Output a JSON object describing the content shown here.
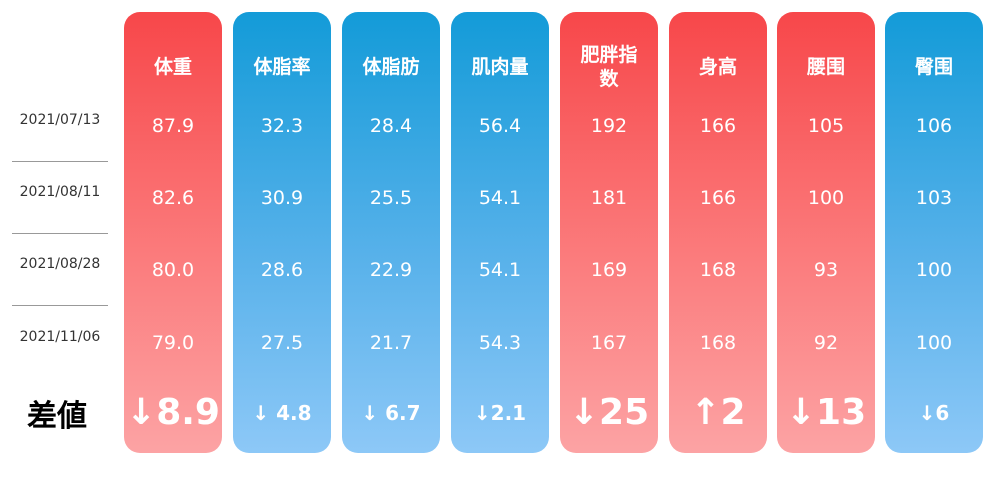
{
  "chart_data": {
    "type": "table",
    "dates": [
      "2021/07/13",
      "2021/08/11",
      "2021/08/28",
      "2021/11/06"
    ],
    "difference_label": "差値",
    "columns": [
      {
        "name": "体重",
        "color": "red",
        "values": [
          "87.9",
          "82.6",
          "80.0",
          "79.0"
        ],
        "diff": "↓8.9",
        "diff_value": 8.9,
        "diff_direction": "down"
      },
      {
        "name": "体脂率",
        "color": "blue",
        "values": [
          "32.3",
          "30.9",
          "28.6",
          "27.5"
        ],
        "diff": "↓ 4.8",
        "diff_value": 4.8,
        "diff_direction": "down"
      },
      {
        "name": "体脂肪",
        "color": "blue",
        "values": [
          "28.4",
          "25.5",
          "22.9",
          "21.7"
        ],
        "diff": "↓ 6.7",
        "diff_value": 6.7,
        "diff_direction": "down"
      },
      {
        "name": "肌肉量",
        "color": "blue",
        "values": [
          "56.4",
          "54.1",
          "54.1",
          "54.3"
        ],
        "diff": "↓2.1",
        "diff_value": 2.1,
        "diff_direction": "down"
      },
      {
        "name": "肥胖指数",
        "color": "red",
        "values": [
          "192",
          "181",
          "169",
          "167"
        ],
        "diff": "↓25",
        "diff_value": 25,
        "diff_direction": "down"
      },
      {
        "name": "身高",
        "color": "red",
        "values": [
          "166",
          "166",
          "168",
          "168"
        ],
        "diff": "↑2",
        "diff_value": 2,
        "diff_direction": "up"
      },
      {
        "name": "腰围",
        "color": "red",
        "values": [
          "105",
          "100",
          "93",
          "92"
        ],
        "diff": "↓13",
        "diff_value": 13,
        "diff_direction": "down"
      },
      {
        "name": "臀围",
        "color": "blue",
        "values": [
          "106",
          "103",
          "100",
          "100"
        ],
        "diff": "↓6",
        "diff_value": 6,
        "diff_direction": "down"
      }
    ]
  },
  "colors": {
    "red_top": "#f7474a",
    "red_bottom": "#fca3a4",
    "blue_top": "#139bd8",
    "blue_bottom": "#8dc8f7"
  }
}
